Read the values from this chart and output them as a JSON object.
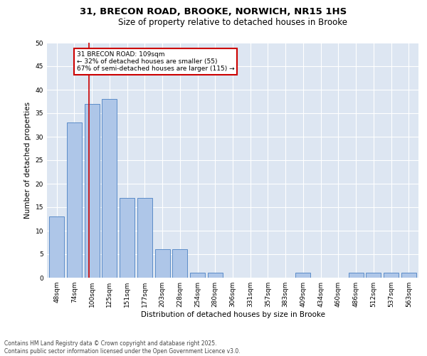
{
  "title_line1": "31, BRECON ROAD, BROOKE, NORWICH, NR15 1HS",
  "title_line2": "Size of property relative to detached houses in Brooke",
  "xlabel": "Distribution of detached houses by size in Brooke",
  "ylabel": "Number of detached properties",
  "categories": [
    "48sqm",
    "74sqm",
    "100sqm",
    "125sqm",
    "151sqm",
    "177sqm",
    "203sqm",
    "228sqm",
    "254sqm",
    "280sqm",
    "306sqm",
    "331sqm",
    "357sqm",
    "383sqm",
    "409sqm",
    "434sqm",
    "460sqm",
    "486sqm",
    "512sqm",
    "537sqm",
    "563sqm"
  ],
  "values": [
    13,
    33,
    37,
    38,
    17,
    17,
    6,
    6,
    1,
    1,
    0,
    0,
    0,
    0,
    1,
    0,
    0,
    1,
    1,
    1,
    1
  ],
  "bar_color": "#aec6e8",
  "bar_edge_color": "#5b8cc8",
  "bar_edge_width": 0.7,
  "bg_color": "#dde6f2",
  "grid_color": "#ffffff",
  "vline_x": 1.83,
  "vline_color": "#cc0000",
  "annotation_text": "31 BRECON ROAD: 109sqm\n← 32% of detached houses are smaller (55)\n67% of semi-detached houses are larger (115) →",
  "annotation_box_color": "#cc0000",
  "ylim": [
    0,
    50
  ],
  "yticks": [
    0,
    5,
    10,
    15,
    20,
    25,
    30,
    35,
    40,
    45,
    50
  ],
  "footnote": "Contains HM Land Registry data © Crown copyright and database right 2025.\nContains public sector information licensed under the Open Government Licence v3.0.",
  "title_fontsize": 9.5,
  "subtitle_fontsize": 8.5,
  "label_fontsize": 7.5,
  "tick_fontsize": 6.5,
  "annotation_fontsize": 6.5,
  "footnote_fontsize": 5.5
}
